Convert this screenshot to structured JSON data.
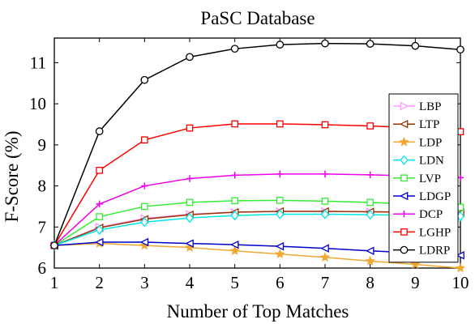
{
  "chart_data": {
    "type": "line",
    "title": "PaSC Database",
    "xlabel": "Number of Top Matches",
    "ylabel": "F-Score (%)",
    "xlim": [
      1,
      10
    ],
    "ylim": [
      6,
      11.6
    ],
    "xticks": [
      1,
      2,
      3,
      4,
      5,
      6,
      7,
      8,
      9,
      10
    ],
    "yticks": [
      6,
      7,
      8,
      9,
      10,
      11
    ],
    "grid": false,
    "legend_position": "right",
    "x": [
      1,
      2,
      3,
      4,
      5,
      6,
      7,
      8,
      9,
      10
    ],
    "series": [
      {
        "name": "LBP",
        "color": "#ff99ff",
        "marker": "triangle-right",
        "values": [
          6.55,
          7.0,
          7.21,
          7.31,
          7.36,
          7.38,
          7.38,
          7.37,
          7.36,
          7.35
        ]
      },
      {
        "name": "LTP",
        "color": "#993300",
        "marker": "triangle-left",
        "values": [
          6.55,
          6.98,
          7.19,
          7.3,
          7.36,
          7.38,
          7.38,
          7.37,
          7.36,
          7.34
        ]
      },
      {
        "name": "LDP",
        "color": "#f0a830",
        "marker": "star",
        "values": [
          6.55,
          6.6,
          6.55,
          6.5,
          6.42,
          6.34,
          6.26,
          6.17,
          6.09,
          6.0
        ]
      },
      {
        "name": "LDN",
        "color": "#00e6e6",
        "marker": "diamond",
        "values": [
          6.55,
          6.93,
          7.12,
          7.22,
          7.28,
          7.31,
          7.31,
          7.3,
          7.28,
          7.26
        ]
      },
      {
        "name": "LVP",
        "color": "#33ee33",
        "marker": "square",
        "values": [
          6.55,
          7.25,
          7.5,
          7.6,
          7.64,
          7.65,
          7.63,
          7.6,
          7.55,
          7.48
        ]
      },
      {
        "name": "LDGP",
        "color": "#0000cc",
        "marker": "triangle-left",
        "values": [
          6.55,
          6.63,
          6.63,
          6.6,
          6.57,
          6.53,
          6.48,
          6.42,
          6.37,
          6.31
        ]
      },
      {
        "name": "DCP",
        "color": "#ee00ee",
        "marker": "plus",
        "values": [
          6.55,
          7.56,
          8.0,
          8.18,
          8.26,
          8.29,
          8.29,
          8.27,
          8.24,
          8.2
        ]
      },
      {
        "name": "LGHP",
        "color": "#ff0000",
        "marker": "square",
        "values": [
          6.55,
          8.38,
          9.12,
          9.41,
          9.51,
          9.51,
          9.49,
          9.46,
          9.41,
          9.32
        ]
      },
      {
        "name": "LDRP",
        "color": "#000000",
        "marker": "circle",
        "values": [
          6.55,
          9.33,
          10.58,
          11.14,
          11.34,
          11.44,
          11.47,
          11.46,
          11.41,
          11.32
        ]
      }
    ]
  }
}
